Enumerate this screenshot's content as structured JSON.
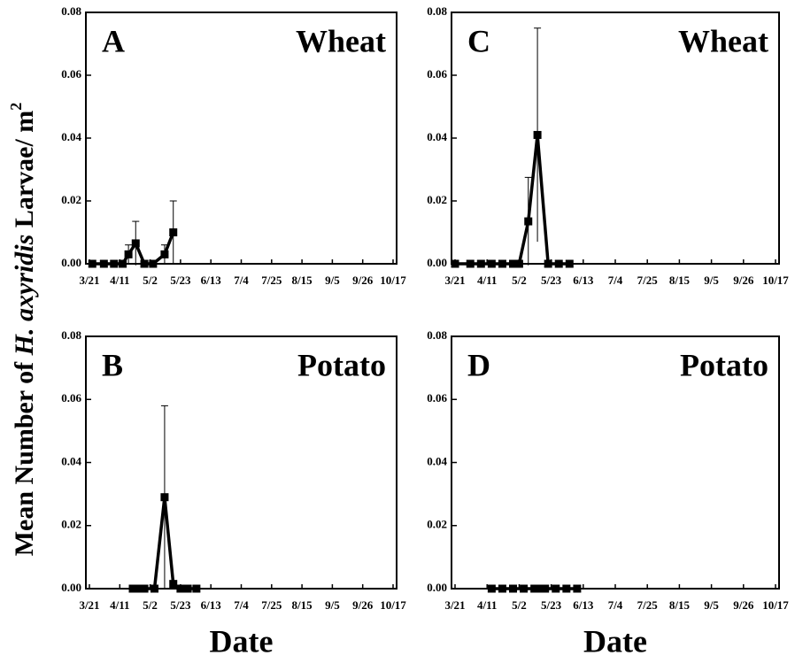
{
  "ylabel": {
    "before": "Mean Number of ",
    "italic": "H. axyridis",
    "after": " Larvae/ m",
    "sup": "2"
  },
  "chart_data": [
    {
      "type": "line",
      "label": "A",
      "title": "Wheat",
      "x": [
        "3/23",
        "3/31",
        "4/7",
        "4/13",
        "4/17",
        "4/22",
        "4/28",
        "5/4",
        "5/12",
        "5/18"
      ],
      "series": [
        {
          "name": "Wheat",
          "color": "#000000",
          "values": [
            0,
            0,
            0,
            0,
            0.003,
            0.0065,
            0,
            0,
            0.003,
            0.01
          ],
          "errors": [
            null,
            null,
            null,
            null,
            0.003,
            0.007,
            null,
            null,
            0.003,
            0.01
          ]
        }
      ],
      "xlim": [
        "3/21",
        "10/17"
      ],
      "xticks": [
        "3/21",
        "4/11",
        "5/2",
        "5/23",
        "6/13",
        "7/4",
        "7/25",
        "8/15",
        "9/5",
        "9/26",
        "10/17"
      ],
      "ylim": [
        0,
        0.08
      ],
      "yticks": [
        {
          "value": 0,
          "label": "0.00"
        },
        {
          "value": 0.02,
          "label": "0.02"
        },
        {
          "value": 0.04,
          "label": "0.04"
        },
        {
          "value": 0.06,
          "label": "0.06"
        },
        {
          "value": 0.08,
          "label": "0.08"
        }
      ]
    },
    {
      "type": "line",
      "label": "C",
      "title": "Wheat",
      "x": [
        "3/21",
        "3/31",
        "4/7",
        "4/14",
        "4/21",
        "4/28",
        "5/2",
        "5/8",
        "5/14",
        "5/21",
        "5/28",
        "6/4"
      ],
      "series": [
        {
          "name": "Wheat",
          "color": "#000000",
          "values": [
            0,
            0,
            0,
            0,
            0,
            0,
            0,
            0.0135,
            0.041,
            0,
            0,
            0
          ],
          "errors": [
            null,
            null,
            null,
            null,
            null,
            null,
            null,
            0.014,
            0.034,
            null,
            null,
            null
          ]
        }
      ],
      "xlim": [
        "3/21",
        "10/17"
      ],
      "xticks": [
        "3/21",
        "4/11",
        "5/2",
        "5/23",
        "6/13",
        "7/4",
        "7/25",
        "8/15",
        "9/5",
        "9/26",
        "10/17"
      ],
      "ylim": [
        0,
        0.08
      ],
      "yticks": [
        {
          "value": 0,
          "label": "0.00"
        },
        {
          "value": 0.02,
          "label": "0.02"
        },
        {
          "value": 0.04,
          "label": "0.04"
        },
        {
          "value": 0.06,
          "label": "0.06"
        },
        {
          "value": 0.08,
          "label": "0.08"
        }
      ]
    },
    {
      "type": "line",
      "label": "B",
      "title": "Potato",
      "xlabel": "Date",
      "x": [
        "4/20",
        "4/24",
        "4/28",
        "5/5",
        "5/12",
        "5/18",
        "5/23",
        "5/28",
        "6/3"
      ],
      "series": [
        {
          "name": "Potato",
          "color": "#000000",
          "values": [
            0,
            0,
            0,
            0,
            0.029,
            0.0015,
            0,
            0,
            0
          ],
          "errors": [
            null,
            null,
            null,
            null,
            0.029,
            null,
            null,
            null,
            null
          ]
        }
      ],
      "xlim": [
        "3/21",
        "10/17"
      ],
      "xticks": [
        "3/21",
        "4/11",
        "5/2",
        "5/23",
        "6/13",
        "7/4",
        "7/25",
        "8/15",
        "9/5",
        "9/26",
        "10/17"
      ],
      "ylim": [
        0,
        0.08
      ],
      "yticks": [
        {
          "value": 0,
          "label": "0.00"
        },
        {
          "value": 0.02,
          "label": "0.02"
        },
        {
          "value": 0.04,
          "label": "0.04"
        },
        {
          "value": 0.06,
          "label": "0.06"
        },
        {
          "value": 0.08,
          "label": "0.08"
        }
      ]
    },
    {
      "type": "line",
      "label": "D",
      "title": "Potato",
      "xlabel": "Date",
      "x": [
        "4/14",
        "4/21",
        "4/28",
        "5/5",
        "5/12",
        "5/16",
        "5/19",
        "5/26",
        "6/2",
        "6/9"
      ],
      "series": [
        {
          "name": "Potato",
          "color": "#000000",
          "values": [
            0,
            0,
            0,
            0,
            0,
            0,
            0,
            0,
            0,
            0
          ],
          "errors": [
            null,
            null,
            null,
            null,
            null,
            null,
            null,
            null,
            null,
            null
          ]
        }
      ],
      "xlim": [
        "3/21",
        "10/17"
      ],
      "xticks": [
        "3/21",
        "4/11",
        "5/2",
        "5/23",
        "6/13",
        "7/4",
        "7/25",
        "8/15",
        "9/5",
        "9/26",
        "10/17"
      ],
      "ylim": [
        0,
        0.08
      ],
      "yticks": [
        {
          "value": 0,
          "label": "0.00"
        },
        {
          "value": 0.02,
          "label": "0.02"
        },
        {
          "value": 0.04,
          "label": "0.04"
        },
        {
          "value": 0.06,
          "label": "0.06"
        },
        {
          "value": 0.08,
          "label": "0.08"
        }
      ]
    }
  ]
}
